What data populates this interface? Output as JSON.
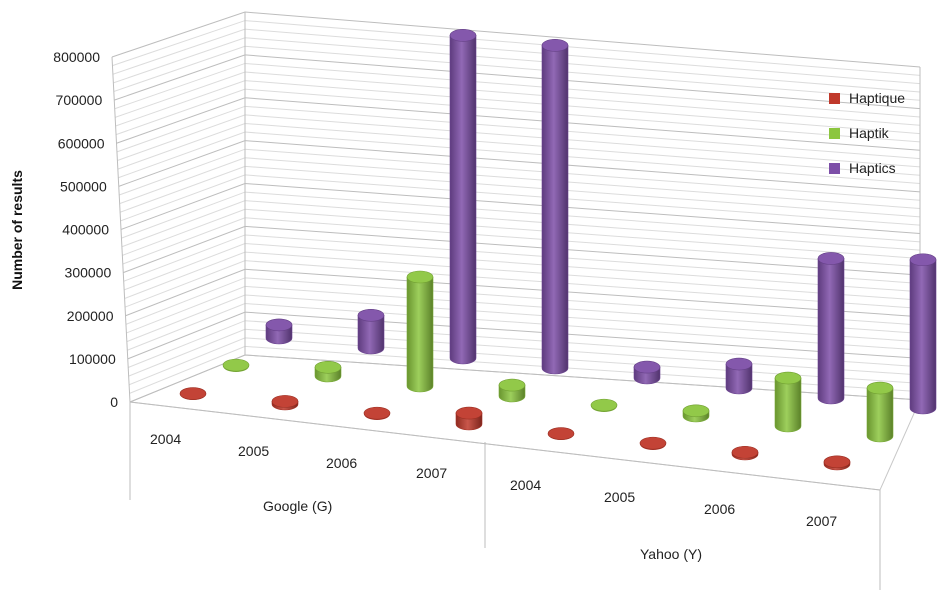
{
  "chart_data": {
    "type": "bar",
    "style": "3d-cylinder",
    "title": "",
    "xlabel": "",
    "ylabel": "Number of results",
    "ylim": [
      0,
      800000
    ],
    "yticks": [
      0,
      100000,
      200000,
      300000,
      400000,
      500000,
      600000,
      700000,
      800000
    ],
    "ytick_labels": [
      "0",
      "100000",
      "200000",
      "300000",
      "400000",
      "500000",
      "600000",
      "700000",
      "800000"
    ],
    "grid": true,
    "legend_position": "right",
    "groups": [
      {
        "name": "Google (G)",
        "categories": [
          "2004",
          "2005",
          "2006",
          "2007"
        ]
      },
      {
        "name": "Yahoo (Y)",
        "categories": [
          "2004",
          "2005",
          "2006",
          "2007"
        ]
      }
    ],
    "series": [
      {
        "name": "Haptique",
        "color": "#c0392b",
        "values": [
          1000,
          6000,
          2000,
          25000,
          1000,
          2000,
          4000,
          5000
        ]
      },
      {
        "name": "Haptik",
        "color": "#8cc63f",
        "values": [
          2000,
          20000,
          250000,
          25000,
          2000,
          12000,
          110000,
          110000
        ]
      },
      {
        "name": "Haptics",
        "color": "#7d4fa8",
        "values": [
          30000,
          75000,
          740000,
          740000,
          25000,
          55000,
          320000,
          340000
        ]
      }
    ]
  }
}
